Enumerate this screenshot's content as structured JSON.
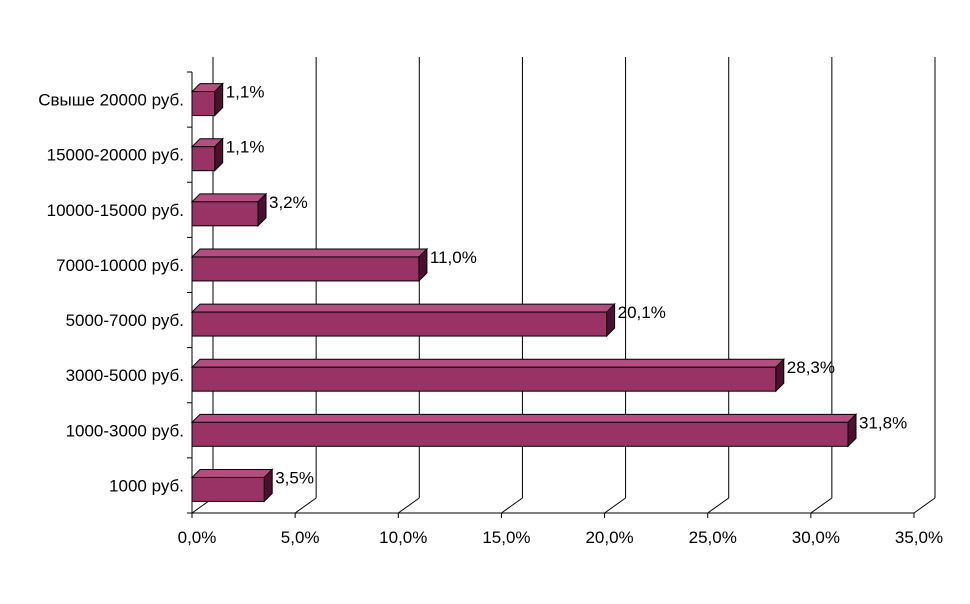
{
  "chart_data": {
    "type": "bar",
    "orientation": "horizontal",
    "style": "3d",
    "categories": [
      "Свыше 20000 руб.",
      "15000-20000 руб.",
      "10000-15000 руб.",
      "7000-10000 руб.",
      "5000-7000 руб.",
      "3000-5000 руб.",
      "1000-3000 руб.",
      "1000 руб."
    ],
    "values": [
      1.1,
      1.1,
      3.2,
      11.0,
      20.1,
      28.3,
      31.8,
      3.5
    ],
    "data_labels": [
      "1,1%",
      "1,1%",
      "3,2%",
      "11,0%",
      "20,1%",
      "28,3%",
      "31,8%",
      "3,5%"
    ],
    "x_ticks": [
      "0,0%",
      "5,0%",
      "10,0%",
      "15,0%",
      "20,0%",
      "25,0%",
      "30,0%",
      "35,0%"
    ],
    "xlim": [
      0,
      35
    ],
    "grid": true,
    "legend": "none",
    "colors": {
      "bar_front": "#993366",
      "bar_top": "#B34F80",
      "bar_side": "#4A1030",
      "grid": "#000000"
    }
  }
}
